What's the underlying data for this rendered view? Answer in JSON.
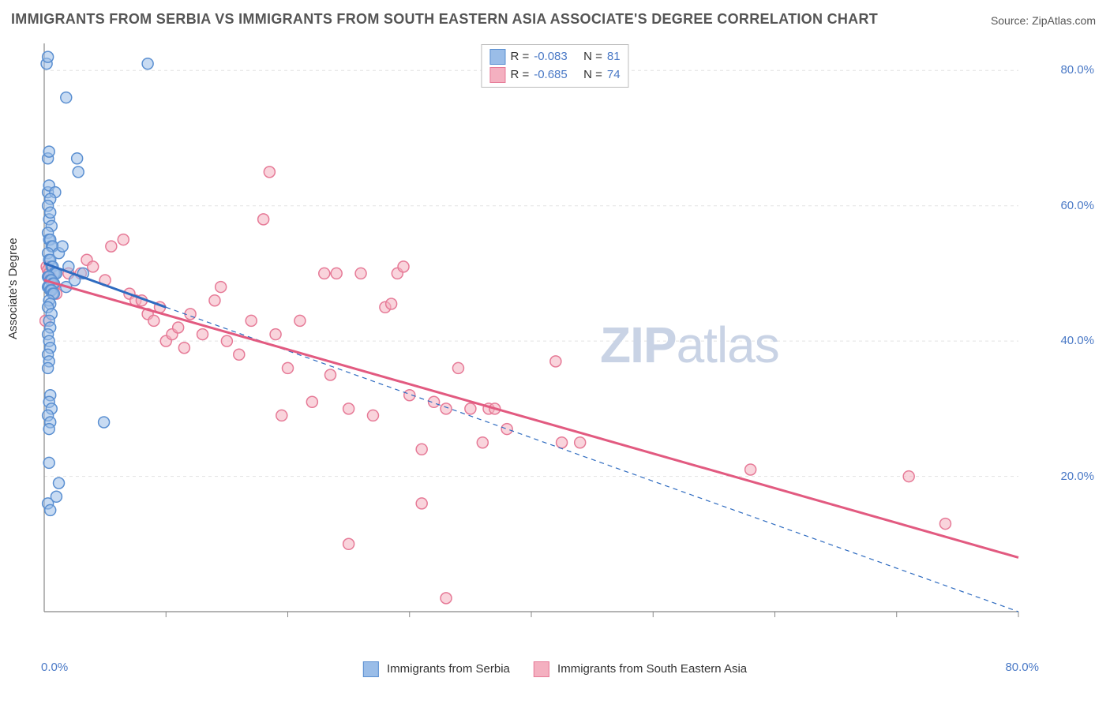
{
  "title": "IMMIGRANTS FROM SERBIA VS IMMIGRANTS FROM SOUTH EASTERN ASIA ASSOCIATE'S DEGREE CORRELATION CHART",
  "source_label": "Source: ZipAtlas.com",
  "watermark_bold": "ZIP",
  "watermark_rest": "atlas",
  "ylabel": "Associate's Degree",
  "chart": {
    "type": "scatter",
    "background_color": "#ffffff",
    "grid_color": "#e3e3e3",
    "axis_color": "#888888",
    "tick_color": "#888888",
    "label_fontsize": 15,
    "title_fontsize": 18,
    "title_color": "#555555",
    "xlim": [
      0,
      80
    ],
    "ylim": [
      0,
      84
    ],
    "y_ticks": [
      20,
      40,
      60,
      80
    ],
    "y_tick_labels": [
      "20.0%",
      "40.0%",
      "60.0%",
      "80.0%"
    ],
    "x_minor_ticks": [
      10,
      20,
      30,
      40,
      50,
      60,
      70,
      80
    ],
    "x_tick_left": "0.0%",
    "x_tick_right": "80.0%",
    "y_axis_label_color": "#4a79c6",
    "marker_radius": 7,
    "marker_stroke_width": 1.5,
    "trend_solid_width": 3,
    "trend_dash_pattern": "6,5",
    "series": [
      {
        "name": "Immigrants from Serbia",
        "legend_label": "Immigrants from Serbia",
        "fill_color": "#9abde8",
        "stroke_color": "#5a8fd1",
        "fill_opacity": 0.55,
        "R": "-0.083",
        "N": "81",
        "trend_solid": {
          "x1": 0,
          "y1": 51.5,
          "x2": 10,
          "y2": 45
        },
        "trend_dashed": {
          "x1": 10,
          "y1": 45,
          "x2": 80,
          "y2": 0
        },
        "trend_color": "#2e6bc0",
        "points": [
          [
            0.2,
            81
          ],
          [
            0.3,
            82
          ],
          [
            8.5,
            81
          ],
          [
            1.8,
            76
          ],
          [
            0.3,
            67
          ],
          [
            0.4,
            68
          ],
          [
            2.7,
            67
          ],
          [
            2.8,
            65
          ],
          [
            0.3,
            62
          ],
          [
            0.4,
            63
          ],
          [
            0.9,
            62
          ],
          [
            0.5,
            61
          ],
          [
            0.3,
            60
          ],
          [
            0.4,
            58
          ],
          [
            0.5,
            59
          ],
          [
            0.6,
            57
          ],
          [
            0.3,
            56
          ],
          [
            0.4,
            55
          ],
          [
            0.5,
            55
          ],
          [
            0.6,
            54
          ],
          [
            0.7,
            54
          ],
          [
            0.3,
            53
          ],
          [
            0.4,
            52
          ],
          [
            0.5,
            52
          ],
          [
            0.6,
            51
          ],
          [
            0.7,
            51
          ],
          [
            0.8,
            50
          ],
          [
            0.9,
            50
          ],
          [
            1.0,
            50
          ],
          [
            0.3,
            49.5
          ],
          [
            0.4,
            49.5
          ],
          [
            0.5,
            49
          ],
          [
            0.6,
            49
          ],
          [
            0.7,
            48.5
          ],
          [
            0.8,
            48.5
          ],
          [
            0.3,
            48
          ],
          [
            0.4,
            48
          ],
          [
            0.5,
            47.5
          ],
          [
            0.6,
            47.5
          ],
          [
            0.7,
            47
          ],
          [
            0.8,
            47
          ],
          [
            3.2,
            50
          ],
          [
            2.5,
            49
          ],
          [
            1.2,
            53
          ],
          [
            1.5,
            54
          ],
          [
            1.8,
            48
          ],
          [
            2.0,
            51
          ],
          [
            0.4,
            46
          ],
          [
            0.5,
            45.5
          ],
          [
            0.3,
            45
          ],
          [
            0.6,
            44
          ],
          [
            0.4,
            43
          ],
          [
            0.5,
            42
          ],
          [
            0.3,
            41
          ],
          [
            0.4,
            40
          ],
          [
            0.5,
            39
          ],
          [
            0.3,
            38
          ],
          [
            0.4,
            37
          ],
          [
            0.3,
            36
          ],
          [
            0.5,
            32
          ],
          [
            0.4,
            31
          ],
          [
            0.6,
            30
          ],
          [
            0.3,
            29
          ],
          [
            0.5,
            28
          ],
          [
            0.4,
            27
          ],
          [
            4.9,
            28
          ],
          [
            0.4,
            22
          ],
          [
            1.2,
            19
          ],
          [
            1.0,
            17
          ],
          [
            0.3,
            16
          ],
          [
            0.5,
            15
          ]
        ]
      },
      {
        "name": "Immigrants from South Eastern Asia",
        "legend_label": "Immigrants from South Eastern Asia",
        "fill_color": "#f4b0c0",
        "stroke_color": "#e67a97",
        "fill_opacity": 0.55,
        "R": "-0.685",
        "N": "74",
        "trend_solid": {
          "x1": 0,
          "y1": 49,
          "x2": 80,
          "y2": 8
        },
        "trend_dashed": null,
        "trend_color": "#e25a80",
        "points": [
          [
            0.2,
            51
          ],
          [
            0.3,
            50.5
          ],
          [
            0.4,
            50
          ],
          [
            0.5,
            49.5
          ],
          [
            0.6,
            49
          ],
          [
            0.7,
            48.5
          ],
          [
            0.8,
            48
          ],
          [
            1.0,
            47
          ],
          [
            2.0,
            50
          ],
          [
            3.0,
            50
          ],
          [
            3.5,
            52
          ],
          [
            4.0,
            51
          ],
          [
            5.0,
            49
          ],
          [
            5.5,
            54
          ],
          [
            6.5,
            55
          ],
          [
            7.0,
            47
          ],
          [
            7.5,
            46
          ],
          [
            8.0,
            46
          ],
          [
            8.5,
            44
          ],
          [
            9.0,
            43
          ],
          [
            9.5,
            45
          ],
          [
            10.0,
            40
          ],
          [
            10.5,
            41
          ],
          [
            11.0,
            42
          ],
          [
            11.5,
            39
          ],
          [
            12.0,
            44
          ],
          [
            13.0,
            41
          ],
          [
            14.0,
            46
          ],
          [
            14.5,
            48
          ],
          [
            15.0,
            40
          ],
          [
            16.0,
            38
          ],
          [
            17.0,
            43
          ],
          [
            18.0,
            58
          ],
          [
            18.5,
            65
          ],
          [
            19.0,
            41
          ],
          [
            19.5,
            29
          ],
          [
            20.0,
            36
          ],
          [
            21.0,
            43
          ],
          [
            22.0,
            31
          ],
          [
            23.0,
            50
          ],
          [
            23.5,
            35
          ],
          [
            24.0,
            50
          ],
          [
            25.0,
            30
          ],
          [
            26.0,
            50
          ],
          [
            27.0,
            29
          ],
          [
            28.0,
            45
          ],
          [
            28.5,
            45.5
          ],
          [
            29.0,
            50
          ],
          [
            29.5,
            51
          ],
          [
            30.0,
            32
          ],
          [
            31.0,
            24
          ],
          [
            32.0,
            31
          ],
          [
            33.0,
            30
          ],
          [
            34.0,
            36
          ],
          [
            35.0,
            30
          ],
          [
            36.0,
            25
          ],
          [
            36.5,
            30
          ],
          [
            37.0,
            30
          ],
          [
            38.0,
            27
          ],
          [
            42.0,
            37
          ],
          [
            42.5,
            25
          ],
          [
            31.0,
            16
          ],
          [
            25.0,
            10
          ],
          [
            33.0,
            2
          ],
          [
            44.0,
            25
          ],
          [
            58.0,
            21
          ],
          [
            71.0,
            20
          ],
          [
            74.0,
            13
          ],
          [
            0.1,
            43
          ]
        ]
      }
    ]
  },
  "top_legend": {
    "r_label": "R =",
    "n_label": "N ="
  }
}
